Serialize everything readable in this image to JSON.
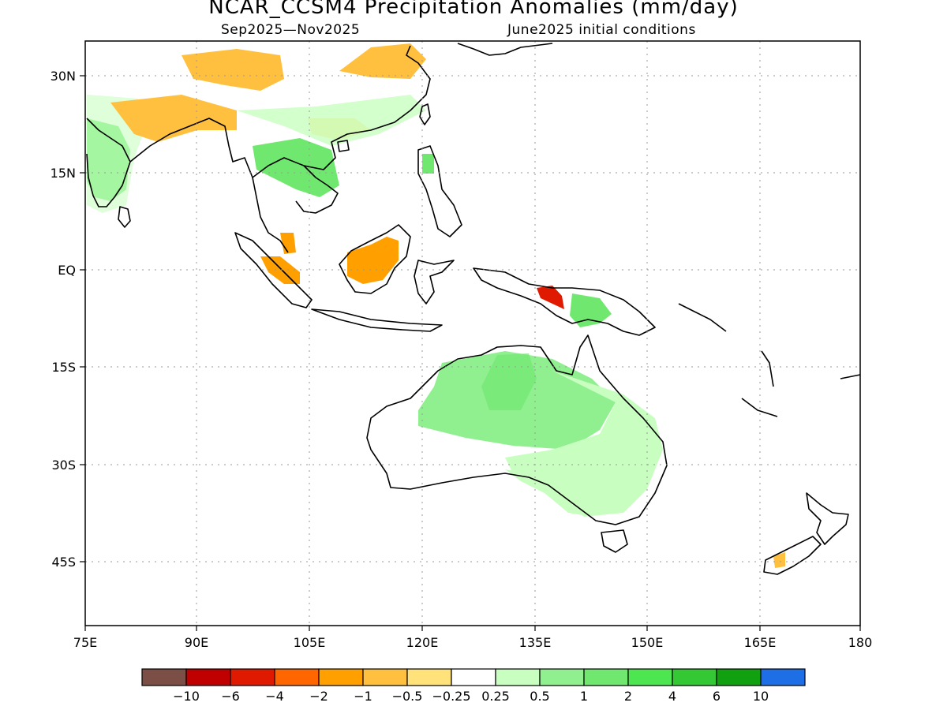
{
  "title": "NCAR_CCSM4 Precipitation Anomalies (mm/day)",
  "subtitle_left": "Sep2025—Nov2025",
  "subtitle_right": "June2025 initial conditions",
  "map": {
    "lon_range": [
      75,
      180
    ],
    "lat_range": [
      -52,
      35
    ],
    "lon_ticks": [
      "75E",
      "90E",
      "105E",
      "120E",
      "135E",
      "150E",
      "165E",
      "180"
    ],
    "lat_ticks": [
      "30N",
      "15N",
      "EQ",
      "15S",
      "30S",
      "45S"
    ],
    "grid": "dotted"
  },
  "colorbar": {
    "colors": [
      "#7b4f45",
      "#c00000",
      "#e01a00",
      "#ff6600",
      "#ff9f00",
      "#ffc040",
      "#ffe27a",
      "#ffffff",
      "#c8ffc0",
      "#90f090",
      "#70e870",
      "#4ee650",
      "#34c834",
      "#10a010",
      "#1e6ee6"
    ],
    "labels": [
      "−10",
      "−6",
      "−4",
      "−2",
      "−1",
      "−0.5",
      "−0.25",
      "0.25",
      "0.5",
      "1",
      "2",
      "4",
      "6",
      "10"
    ]
  }
}
